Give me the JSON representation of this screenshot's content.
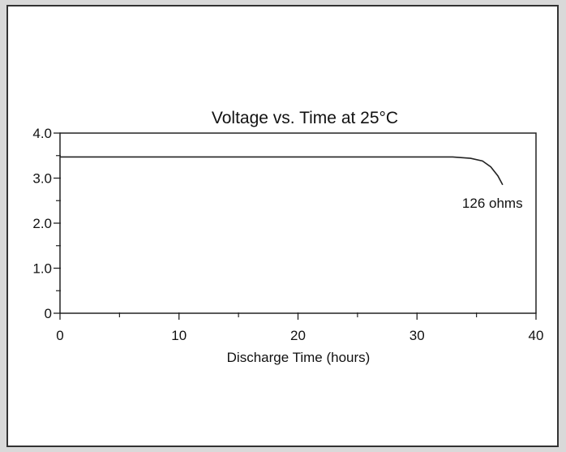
{
  "chart_data": {
    "type": "line",
    "title": "Voltage vs. Time at 25°C",
    "xlabel": "Discharge Time (hours)",
    "ylabel": "",
    "xlim": [
      0,
      40
    ],
    "ylim": [
      0,
      4.0
    ],
    "x_ticks": [
      "0",
      "10",
      "20",
      "30",
      "40"
    ],
    "y_ticks": [
      "0",
      "1.0",
      "2.0",
      "3.0",
      "4.0"
    ],
    "grid": false,
    "series": [
      {
        "points": [
          [
            0,
            3.47
          ],
          [
            5,
            3.47
          ],
          [
            10,
            3.47
          ],
          [
            15,
            3.47
          ],
          [
            20,
            3.47
          ],
          [
            25,
            3.47
          ],
          [
            30,
            3.47
          ],
          [
            33,
            3.47
          ],
          [
            34.5,
            3.44
          ],
          [
            35.5,
            3.38
          ],
          [
            36.2,
            3.25
          ],
          [
            36.8,
            3.05
          ],
          [
            37.2,
            2.85
          ]
        ]
      }
    ],
    "annotations": [
      {
        "text": "126 ohms",
        "x": 37.2,
        "y": 2.85
      }
    ],
    "colors": {
      "line": "#222222",
      "axis": "#222222",
      "text": "#111111"
    }
  }
}
